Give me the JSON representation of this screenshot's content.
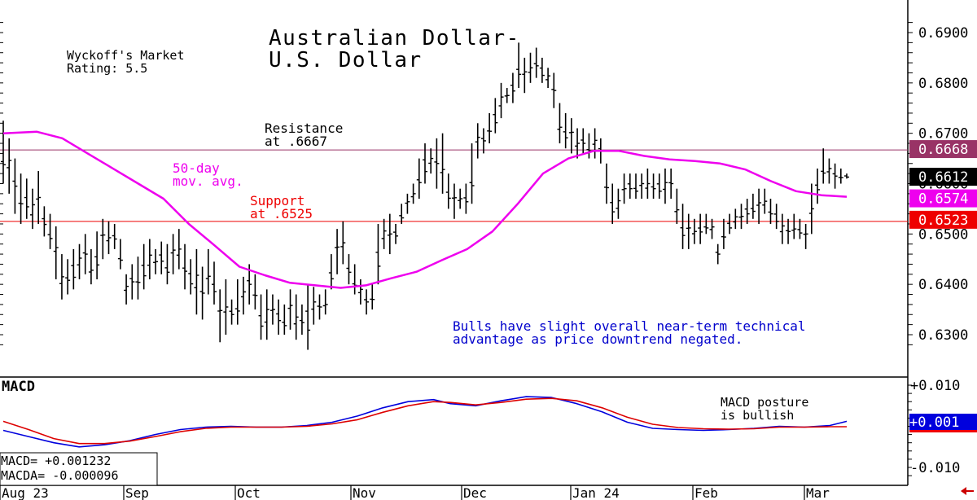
{
  "chart_data": [
    {
      "type": "bar",
      "title": "Australian Dollar-\nU.S. Dollar",
      "subtitle": "Wyckoff's Market\nRating: 5.5",
      "ylim": [
        0.626,
        0.694
      ],
      "y_ticks": [
        "0.6900",
        "0.6800",
        "0.6700",
        "0.6600",
        "0.6500",
        "0.6400",
        "0.6300"
      ],
      "x_labels": [
        "Aug 23",
        "Sep",
        "Oct",
        "Nov",
        "Dec",
        "Jan 24",
        "Feb",
        "Mar"
      ],
      "resistance": {
        "value": 0.6667,
        "label": "Resistance\nat .6667",
        "tag": "0.6668"
      },
      "support": {
        "value": 0.6525,
        "label": "Support\nat .6525",
        "tag": "0.6523"
      },
      "last_price": {
        "value": 0.6612,
        "tag": "0.6612"
      },
      "moving_average": {
        "label": "50-day\nmov. avg.",
        "tag": "0.6574",
        "last": 0.6574
      },
      "note": "Bulls have slight overall near-term technical\nadvantage as price downtrend negated.",
      "series": [
        {
          "kind": "ohlc",
          "bars": [
            [
              0.6725,
              0.66
            ],
            [
              0.669,
              0.658
            ],
            [
              0.665,
              0.654
            ],
            [
              0.662,
              0.652
            ],
            [
              0.661,
              0.653
            ],
            [
              0.659,
              0.651
            ],
            [
              0.6625,
              0.652
            ],
            [
              0.6555,
              0.6495
            ],
            [
              0.654,
              0.647
            ],
            [
              0.6515,
              0.641
            ],
            [
              0.646,
              0.637
            ],
            [
              0.645,
              0.638
            ],
            [
              0.647,
              0.639
            ],
            [
              0.648,
              0.641
            ],
            [
              0.65,
              0.642
            ],
            [
              0.647,
              0.64
            ],
            [
              0.6505,
              0.641
            ],
            [
              0.653,
              0.645
            ],
            [
              0.6525,
              0.646
            ],
            [
              0.652,
              0.647
            ],
            [
              0.649,
              0.643
            ],
            [
              0.642,
              0.636
            ],
            [
              0.644,
              0.637
            ],
            [
              0.6455,
              0.637
            ],
            [
              0.648,
              0.639
            ],
            [
              0.649,
              0.641
            ],
            [
              0.647,
              0.642
            ],
            [
              0.6485,
              0.642
            ],
            [
              0.648,
              0.64
            ],
            [
              0.65,
              0.642
            ],
            [
              0.651,
              0.643
            ],
            [
              0.648,
              0.639
            ],
            [
              0.645,
              0.638
            ],
            [
              0.647,
              0.634
            ],
            [
              0.6435,
              0.633
            ],
            [
              0.647,
              0.638
            ],
            [
              0.6445,
              0.636
            ],
            [
              0.639,
              0.6285
            ],
            [
              0.641,
              0.63
            ],
            [
              0.637,
              0.632
            ],
            [
              0.641,
              0.632
            ],
            [
              0.6415,
              0.634
            ],
            [
              0.644,
              0.636
            ],
            [
              0.642,
              0.635
            ],
            [
              0.638,
              0.629
            ],
            [
              0.639,
              0.629
            ],
            [
              0.638,
              0.632
            ],
            [
              0.637,
              0.63
            ],
            [
              0.636,
              0.63
            ],
            [
              0.639,
              0.631
            ],
            [
              0.638,
              0.629
            ],
            [
              0.636,
              0.63
            ],
            [
              0.64,
              0.627
            ],
            [
              0.6395,
              0.632
            ],
            [
              0.638,
              0.633
            ],
            [
              0.639,
              0.634
            ],
            [
              0.646,
              0.639
            ],
            [
              0.651,
              0.642
            ],
            [
              0.6525,
              0.644
            ],
            [
              0.646,
              0.64
            ],
            [
              0.644,
              0.638
            ],
            [
              0.641,
              0.636
            ],
            [
              0.639,
              0.634
            ],
            [
              0.64,
              0.635
            ],
            [
              0.652,
              0.64
            ],
            [
              0.653,
              0.647
            ],
            [
              0.654,
              0.646
            ],
            [
              0.652,
              0.648
            ],
            [
              0.656,
              0.652
            ],
            [
              0.658,
              0.654
            ],
            [
              0.66,
              0.656
            ],
            [
              0.665,
              0.657
            ],
            [
              0.668,
              0.66
            ],
            [
              0.667,
              0.662
            ],
            [
              0.669,
              0.659
            ],
            [
              0.67,
              0.658
            ],
            [
              0.662,
              0.655
            ],
            [
              0.66,
              0.653
            ],
            [
              0.659,
              0.655
            ],
            [
              0.66,
              0.654
            ],
            [
              0.668,
              0.656
            ],
            [
              0.672,
              0.665
            ],
            [
              0.671,
              0.666
            ],
            [
              0.674,
              0.668
            ],
            [
              0.677,
              0.67
            ],
            [
              0.68,
              0.673
            ],
            [
              0.679,
              0.676
            ],
            [
              0.682,
              0.676
            ],
            [
              0.688,
              0.679
            ],
            [
              0.685,
              0.678
            ],
            [
              0.686,
              0.68
            ],
            [
              0.687,
              0.681
            ],
            [
              0.685,
              0.68
            ],
            [
              0.683,
              0.679
            ],
            [
              0.682,
              0.675
            ],
            [
              0.676,
              0.668
            ],
            [
              0.674,
              0.667
            ],
            [
              0.673,
              0.666
            ],
            [
              0.671,
              0.665
            ],
            [
              0.671,
              0.666
            ],
            [
              0.67,
              0.665
            ],
            [
              0.671,
              0.665
            ],
            [
              0.669,
              0.664
            ],
            [
              0.664,
              0.656
            ],
            [
              0.66,
              0.652
            ],
            [
              0.659,
              0.653
            ],
            [
              0.662,
              0.656
            ],
            [
              0.662,
              0.657
            ],
            [
              0.662,
              0.657
            ],
            [
              0.662,
              0.657
            ],
            [
              0.663,
              0.657
            ],
            [
              0.662,
              0.657
            ],
            [
              0.662,
              0.657
            ],
            [
              0.663,
              0.656
            ],
            [
              0.663,
              0.657
            ],
            [
              0.659,
              0.652
            ],
            [
              0.656,
              0.647
            ],
            [
              0.654,
              0.647
            ],
            [
              0.653,
              0.648
            ],
            [
              0.654,
              0.648
            ],
            [
              0.654,
              0.65
            ],
            [
              0.653,
              0.649
            ],
            [
              0.648,
              0.644
            ],
            [
              0.653,
              0.647
            ],
            [
              0.654,
              0.65
            ],
            [
              0.655,
              0.651
            ],
            [
              0.656,
              0.651
            ],
            [
              0.657,
              0.652
            ],
            [
              0.658,
              0.653
            ],
            [
              0.659,
              0.652
            ],
            [
              0.659,
              0.654
            ],
            [
              0.657,
              0.652
            ],
            [
              0.656,
              0.651
            ],
            [
              0.654,
              0.648
            ],
            [
              0.653,
              0.648
            ],
            [
              0.654,
              0.649
            ],
            [
              0.653,
              0.649
            ],
            [
              0.652,
              0.647
            ],
            [
              0.66,
              0.65
            ],
            [
              0.663,
              0.656
            ],
            [
              0.667,
              0.66
            ],
            [
              0.665,
              0.66
            ],
            [
              0.664,
              0.659
            ],
            [
              0.663,
              0.66
            ],
            [
              0.662,
              0.661
            ]
          ]
        },
        {
          "kind": "moving_average",
          "x_frac": [
            0,
            0.04,
            0.07,
            0.1,
            0.13,
            0.16,
            0.19,
            0.22,
            0.25,
            0.28,
            0.31,
            0.34,
            0.37,
            0.4,
            0.43,
            0.46,
            0.49,
            0.52,
            0.55,
            0.58,
            0.61,
            0.64,
            0.67,
            0.7,
            0.73,
            0.76,
            0.79,
            0.82,
            0.85,
            0.88,
            0.91,
            0.94,
            0.97,
            1.0
          ],
          "values": [
            0.67,
            0.6703,
            0.669,
            0.666,
            0.663,
            0.66,
            0.657,
            0.652,
            0.6478,
            0.6435,
            0.6418,
            0.6403,
            0.6398,
            0.6393,
            0.6398,
            0.6412,
            0.6425,
            0.6448,
            0.647,
            0.6505,
            0.656,
            0.662,
            0.665,
            0.6665,
            0.6665,
            0.6655,
            0.6648,
            0.6645,
            0.664,
            0.6628,
            0.6605,
            0.6585,
            0.6577,
            0.6574
          ]
        }
      ]
    },
    {
      "type": "line",
      "title": "MACD",
      "ylim": [
        -0.012,
        0.011
      ],
      "y_ticks": [
        "+0.010",
        "-0.010"
      ],
      "annotation": "MACD posture\nis bullish",
      "macd_tag": "+0.001",
      "readout": [
        "MACD=   +0.001232",
        "MACDA= -0.000096"
      ],
      "series": [
        {
          "name": "MACD",
          "color": "#0000dd",
          "x_frac": [
            0,
            0.03,
            0.06,
            0.09,
            0.12,
            0.15,
            0.18,
            0.21,
            0.24,
            0.27,
            0.3,
            0.33,
            0.36,
            0.39,
            0.42,
            0.45,
            0.48,
            0.51,
            0.53,
            0.56,
            0.59,
            0.62,
            0.65,
            0.68,
            0.71,
            0.74,
            0.77,
            0.8,
            0.83,
            0.86,
            0.89,
            0.92,
            0.95,
            0.98,
            1.0
          ],
          "values": [
            -0.001,
            -0.0025,
            -0.004,
            -0.005,
            -0.0045,
            -0.0035,
            -0.002,
            -0.0008,
            -0.0002,
            0.0,
            -0.0002,
            -0.0002,
            0.0002,
            0.001,
            0.0025,
            0.0045,
            0.006,
            0.0065,
            0.0055,
            0.005,
            0.0062,
            0.0072,
            0.007,
            0.0055,
            0.0035,
            0.001,
            -0.0005,
            -0.0008,
            -0.001,
            -0.0008,
            -0.0005,
            0.0,
            -0.0002,
            0.0002,
            0.0012
          ]
        },
        {
          "name": "MACDA",
          "color": "#dd0000",
          "x_frac": [
            0,
            0.03,
            0.06,
            0.09,
            0.12,
            0.15,
            0.18,
            0.21,
            0.24,
            0.27,
            0.3,
            0.33,
            0.36,
            0.39,
            0.42,
            0.45,
            0.48,
            0.51,
            0.53,
            0.56,
            0.59,
            0.62,
            0.65,
            0.68,
            0.71,
            0.74,
            0.77,
            0.8,
            0.83,
            0.86,
            0.89,
            0.92,
            0.95,
            0.98,
            1.0
          ],
          "values": [
            0.0012,
            -0.0008,
            -0.003,
            -0.0042,
            -0.0042,
            -0.0036,
            -0.0025,
            -0.0013,
            -0.0005,
            -0.0002,
            -0.0002,
            -0.0002,
            0.0,
            0.0006,
            0.0016,
            0.0034,
            0.005,
            0.006,
            0.0058,
            0.0052,
            0.0058,
            0.0066,
            0.0068,
            0.0062,
            0.0045,
            0.0022,
            0.0005,
            -0.0003,
            -0.0006,
            -0.0007,
            -0.0006,
            -0.0002,
            -0.0002,
            -0.0001,
            -0.0001
          ]
        }
      ]
    }
  ],
  "colors": {
    "ma": "#ee00ee",
    "resistance_line": "#993366",
    "support_line": "#ee0000",
    "resistance_tag": "#993366",
    "support_tag": "#ee0000",
    "last_tag": "#000000",
    "ma_tag": "#ee00ee",
    "macd_tag": "#0000dd",
    "note_text": "#0000cc",
    "support_text": "#ee0000",
    "ma_text": "#ee00ee",
    "nav_arrow": "#cc0000"
  },
  "nav_icon": "back-arrow-icon"
}
